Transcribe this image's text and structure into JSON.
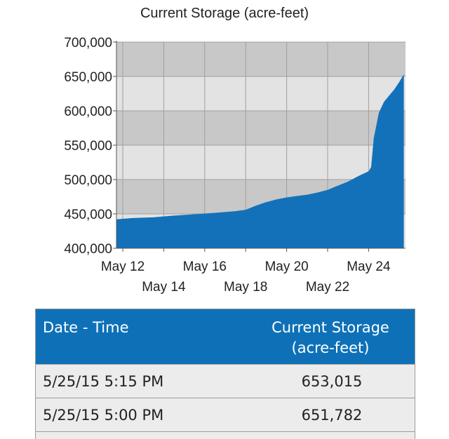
{
  "chart_data": {
    "type": "area",
    "title": "Current Storage (acre-feet)",
    "xlabel": "",
    "ylabel": "",
    "ylim": [
      400000,
      700000
    ],
    "yticks": [
      400000,
      450000,
      500000,
      550000,
      600000,
      650000,
      700000
    ],
    "ytick_labels": [
      "400,000",
      "450,000",
      "500,000",
      "550,000",
      "600,000",
      "650,000",
      "700,000"
    ],
    "xlim": [
      "2015-05-12",
      "2015-05-25"
    ],
    "xtick_labels_top": [
      "May 12",
      "May 16",
      "May 20",
      "May 24"
    ],
    "xtick_labels_bottom": [
      "May 14",
      "May 18",
      "May 22"
    ],
    "grid": true,
    "color": "#1371b9",
    "series": [
      {
        "x": [
          "2015-05-11 12:00",
          "2015-05-12 12:00",
          "2015-05-13 12:00",
          "2015-05-14 12:00",
          "2015-05-15 12:00",
          "2015-05-16 12:00",
          "2015-05-17 12:00",
          "2015-05-18 00:00",
          "2015-05-18 12:00",
          "2015-05-19 00:00",
          "2015-05-19 12:00",
          "2015-05-20 00:00",
          "2015-05-20 12:00",
          "2015-05-21 00:00",
          "2015-05-21 12:00",
          "2015-05-22 00:00",
          "2015-05-22 12:00",
          "2015-05-23 00:00",
          "2015-05-23 12:00",
          "2015-05-24 00:00",
          "2015-05-24 03:00",
          "2015-05-24 06:00",
          "2015-05-24 12:00",
          "2015-05-24 18:00",
          "2015-05-25 00:00",
          "2015-05-25 06:00",
          "2015-05-25 12:00",
          "2015-05-25 17:15"
        ],
        "values": [
          442000,
          444000,
          445000,
          447500,
          449500,
          451500,
          454000,
          456000,
          462000,
          467000,
          471000,
          474000,
          476000,
          478000,
          481000,
          485000,
          491000,
          497000,
          505000,
          512000,
          518000,
          560000,
          597000,
          613000,
          622000,
          631000,
          642000,
          653015
        ]
      }
    ]
  },
  "table": {
    "header_date": "Date - Time",
    "header_storage_line1": "Current Storage",
    "header_storage_line2": "(acre-feet)",
    "rows": [
      {
        "date": "5/25/15 5:15 PM",
        "value": "653,015"
      },
      {
        "date": "5/25/15 5:00 PM",
        "value": "651,782"
      }
    ]
  }
}
